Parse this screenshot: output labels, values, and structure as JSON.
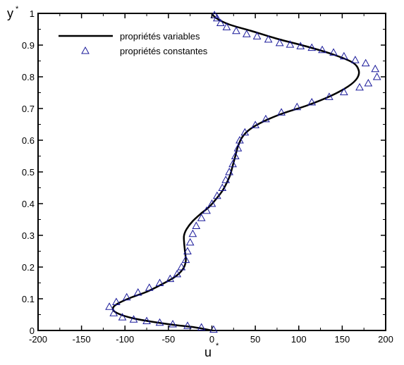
{
  "chart_data": {
    "type": "line",
    "xlabel": "u",
    "xlabel_sup": "*",
    "ylabel": "y",
    "ylabel_sup": "*",
    "xlim": [
      -200,
      200
    ],
    "ylim": [
      0,
      1
    ],
    "x_ticks": [
      -200,
      -150,
      -100,
      -50,
      0,
      50,
      100,
      150,
      200
    ],
    "y_ticks": [
      0,
      0.1,
      0.2,
      0.3,
      0.4,
      0.5,
      0.6,
      0.7,
      0.8,
      0.9,
      1
    ],
    "x_tick_labels": [
      "-200",
      "-150",
      "-100",
      "-50",
      "0",
      "50",
      "100",
      "150",
      "200"
    ],
    "y_tick_labels": [
      "0",
      "0.1",
      "0.2",
      "0.3",
      "0.4",
      "0.5",
      "0.6",
      "0.7",
      "0.8",
      "0.9",
      "1"
    ],
    "grid": false,
    "legend_position": "top-left",
    "series": [
      {
        "name": "propriétés variables",
        "style": "line",
        "color": "#000000",
        "points": [
          [
            0,
            0
          ],
          [
            -20,
            0.01
          ],
          [
            -45,
            0.018
          ],
          [
            -70,
            0.028
          ],
          [
            -90,
            0.038
          ],
          [
            -105,
            0.05
          ],
          [
            -113,
            0.062
          ],
          [
            -113,
            0.075
          ],
          [
            -106,
            0.088
          ],
          [
            -92,
            0.105
          ],
          [
            -75,
            0.122
          ],
          [
            -58,
            0.145
          ],
          [
            -42,
            0.17
          ],
          [
            -33,
            0.195
          ],
          [
            -30,
            0.22
          ],
          [
            -31,
            0.25
          ],
          [
            -32,
            0.28
          ],
          [
            -32,
            0.3
          ],
          [
            -29,
            0.32
          ],
          [
            -22,
            0.345
          ],
          [
            -12,
            0.37
          ],
          [
            -3,
            0.39
          ],
          [
            5,
            0.415
          ],
          [
            12,
            0.44
          ],
          [
            17,
            0.465
          ],
          [
            21,
            0.49
          ],
          [
            24,
            0.52
          ],
          [
            27,
            0.55
          ],
          [
            30,
            0.58
          ],
          [
            35,
            0.61
          ],
          [
            44,
            0.635
          ],
          [
            60,
            0.66
          ],
          [
            82,
            0.685
          ],
          [
            110,
            0.71
          ],
          [
            137,
            0.74
          ],
          [
            157,
            0.77
          ],
          [
            167,
            0.795
          ],
          [
            169,
            0.82
          ],
          [
            162,
            0.845
          ],
          [
            140,
            0.87
          ],
          [
            110,
            0.895
          ],
          [
            75,
            0.92
          ],
          [
            45,
            0.945
          ],
          [
            20,
            0.965
          ],
          [
            5,
            0.985
          ],
          [
            0,
            1.0
          ]
        ]
      },
      {
        "name": "propriétés constantes",
        "style": "marker-triangle",
        "color": "#1a1a9a",
        "points": [
          [
            2,
            0.003
          ],
          [
            -12,
            0.01
          ],
          [
            -28,
            0.015
          ],
          [
            -45,
            0.02
          ],
          [
            -60,
            0.025
          ],
          [
            -75,
            0.03
          ],
          [
            -90,
            0.035
          ],
          [
            -103,
            0.042
          ],
          [
            -113,
            0.055
          ],
          [
            -118,
            0.075
          ],
          [
            -110,
            0.09
          ],
          [
            -98,
            0.105
          ],
          [
            -85,
            0.12
          ],
          [
            -72,
            0.135
          ],
          [
            -60,
            0.15
          ],
          [
            -48,
            0.163
          ],
          [
            -40,
            0.178
          ],
          [
            -35,
            0.2
          ],
          [
            -30,
            0.223
          ],
          [
            -28,
            0.25
          ],
          [
            -25,
            0.278
          ],
          [
            -22,
            0.305
          ],
          [
            -18,
            0.33
          ],
          [
            -12,
            0.355
          ],
          [
            -6,
            0.378
          ],
          [
            0,
            0.4
          ],
          [
            6,
            0.425
          ],
          [
            12,
            0.45
          ],
          [
            16,
            0.475
          ],
          [
            20,
            0.5
          ],
          [
            24,
            0.525
          ],
          [
            27,
            0.55
          ],
          [
            30,
            0.575
          ],
          [
            32,
            0.6
          ],
          [
            38,
            0.625
          ],
          [
            50,
            0.648
          ],
          [
            62,
            0.667
          ],
          [
            80,
            0.688
          ],
          [
            98,
            0.705
          ],
          [
            115,
            0.72
          ],
          [
            135,
            0.737
          ],
          [
            152,
            0.752
          ],
          [
            170,
            0.767
          ],
          [
            180,
            0.78
          ],
          [
            190,
            0.8
          ],
          [
            188,
            0.825
          ],
          [
            177,
            0.843
          ],
          [
            165,
            0.853
          ],
          [
            152,
            0.865
          ],
          [
            140,
            0.877
          ],
          [
            127,
            0.885
          ],
          [
            115,
            0.892
          ],
          [
            102,
            0.897
          ],
          [
            90,
            0.902
          ],
          [
            78,
            0.907
          ],
          [
            65,
            0.918
          ],
          [
            52,
            0.928
          ],
          [
            40,
            0.935
          ],
          [
            28,
            0.945
          ],
          [
            17,
            0.957
          ],
          [
            10,
            0.97
          ],
          [
            6,
            0.985
          ],
          [
            3,
            0.995
          ]
        ]
      }
    ]
  }
}
